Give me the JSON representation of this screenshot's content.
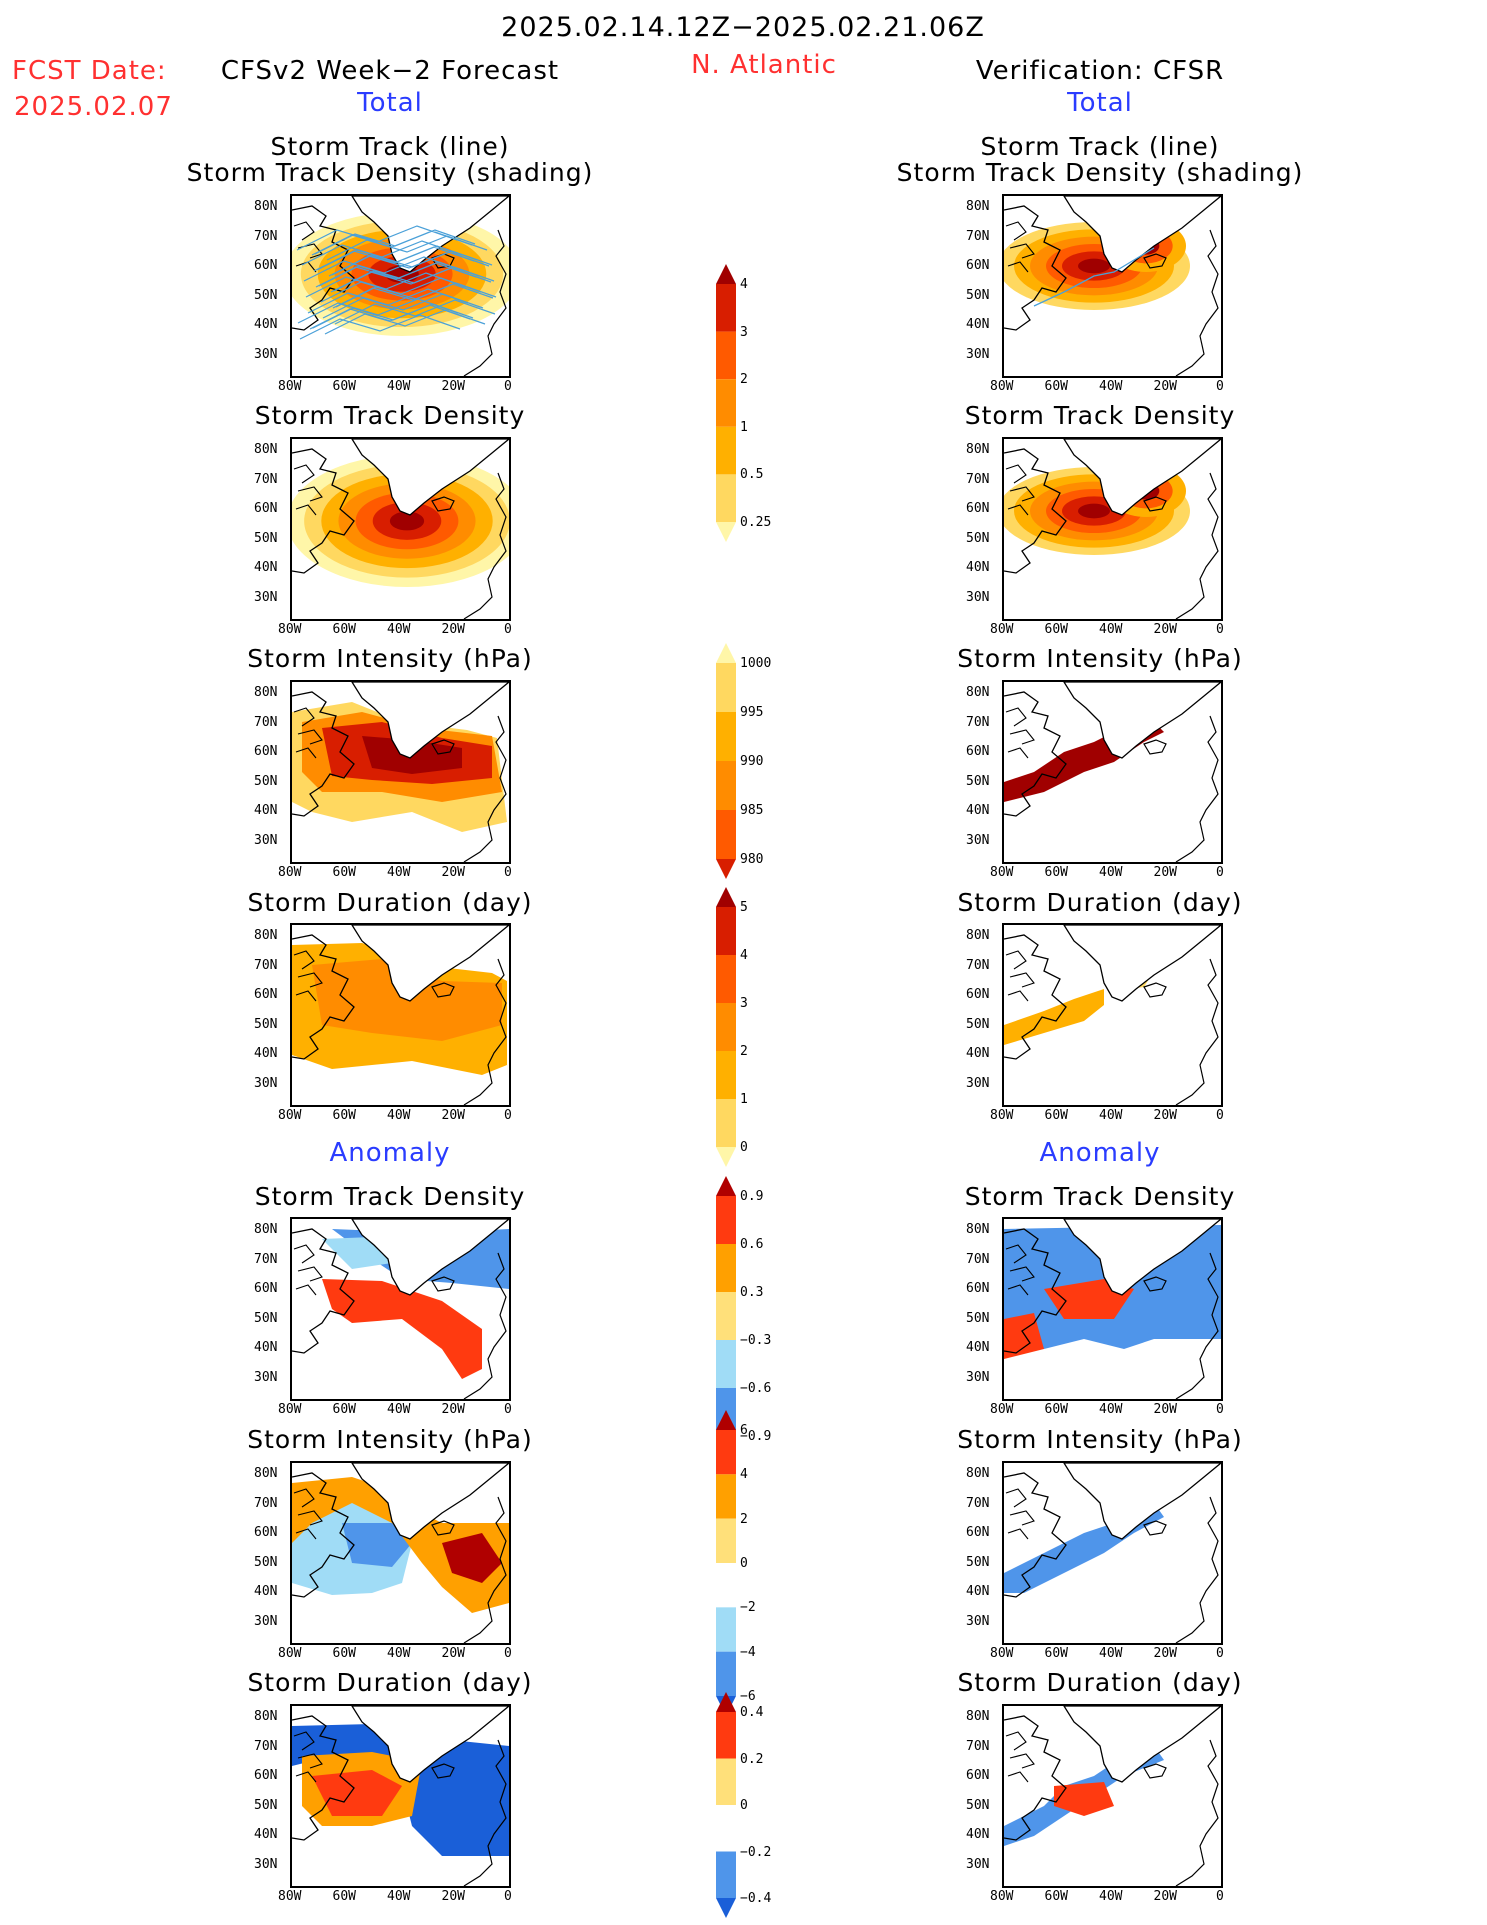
{
  "header": {
    "period": "2025.02.14.12Z−2025.02.21.06Z",
    "fcst_label": "FCST Date:",
    "fcst_date": "2025.02.07",
    "model": "CFSv2 Week−2 Forecast",
    "region": "N. Atlantic",
    "verification": "Verification: CFSR"
  },
  "sections": {
    "total": "Total",
    "anomaly": "Anomaly"
  },
  "axes": {
    "lat_ticks": [
      "80N",
      "70N",
      "60N",
      "50N",
      "40N",
      "30N"
    ],
    "lon_ticks": [
      "80W",
      "60W",
      "40W",
      "20W",
      "0"
    ]
  },
  "panel_titles": {
    "track_line": "Storm Track (line)",
    "track_density_shading": "Storm Track Density (shading)",
    "track_density": "Storm Track Density",
    "intensity": "Storm Intensity (hPa)",
    "duration": "Storm Duration (day)"
  },
  "colorbars": {
    "density": [
      "4",
      "3",
      "2",
      "1",
      "0.5",
      "0.25"
    ],
    "intensity": [
      "1000",
      "995",
      "990",
      "985",
      "980"
    ],
    "duration": [
      "5",
      "4",
      "3",
      "2",
      "1",
      "0"
    ],
    "density_anom": [
      "0.9",
      "0.6",
      "0.3",
      "−0.3",
      "−0.6",
      "−0.9"
    ],
    "intensity_anom": [
      "6",
      "4",
      "2",
      "0",
      "−2",
      "−4",
      "−6"
    ],
    "duration_anom": [
      "0.4",
      "0.2",
      "0",
      "−0.2",
      "−0.4"
    ]
  },
  "colors": {
    "title_red": "#ff3030",
    "section_blue": "#2a3cff",
    "track_line": "#4aa0d8",
    "warm_scale": [
      "#fff6a8",
      "#ffd860",
      "#ffb000",
      "#ff8c00",
      "#ff5a00",
      "#d81e00",
      "#a00000"
    ],
    "anom_scale": [
      "#1a5fd8",
      "#4f95ea",
      "#a0dcf6",
      "#ffffff",
      "#ffe07a",
      "#ffa000",
      "#ff3a10",
      "#b00000"
    ]
  }
}
